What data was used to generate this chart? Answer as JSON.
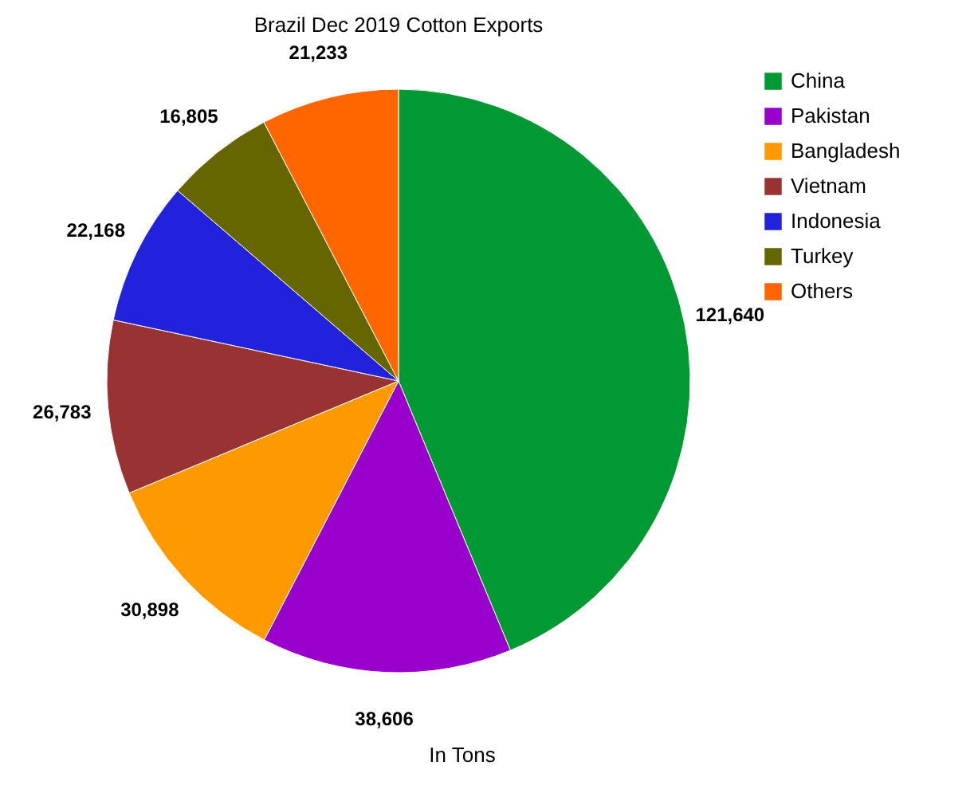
{
  "chart_data": {
    "type": "pie",
    "title": "Brazil Dec 2019 Cotton Exports",
    "categories": [
      "China",
      "Pakistan",
      "Bangladesh",
      "Vietnam",
      "Indonesia",
      "Turkey",
      "Others"
    ],
    "values": [
      121640,
      38606,
      30898,
      26783,
      22168,
      16805,
      21233
    ],
    "colors": [
      "#009933",
      "#9900cc",
      "#ff9900",
      "#993333",
      "#2222dd",
      "#666600",
      "#ff6600"
    ],
    "value_labels": [
      "121,640",
      "38,606",
      "30,898",
      "26,783",
      "22,168",
      "16,805",
      "21,233"
    ],
    "legend": "right",
    "annotations": [
      "In Tons"
    ]
  }
}
